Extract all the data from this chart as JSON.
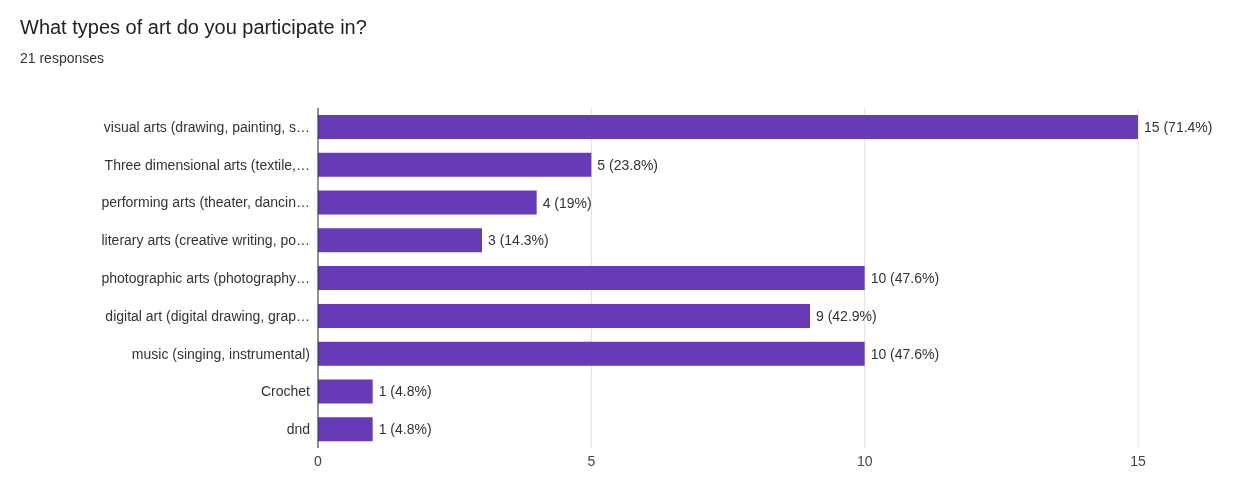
{
  "chart_data": {
    "type": "bar",
    "orientation": "horizontal",
    "title": "What types of art do you participate in?",
    "subtitle": "21 responses",
    "categories": [
      "visual arts (drawing, painting, s…",
      "Three dimensional arts (textile,…",
      "performing arts (theater, dancin…",
      "literary arts (creative writing, po…",
      "photographic arts (photography…",
      "digital art (digital drawing, grap…",
      "music (singing, instrumental)",
      "Crochet",
      "dnd"
    ],
    "values": [
      15,
      5,
      4,
      3,
      10,
      9,
      10,
      1,
      1
    ],
    "value_labels": [
      "15 (71.4%)",
      "5 (23.8%)",
      "4 (19%)",
      "3 (14.3%)",
      "10 (47.6%)",
      "9 (42.9%)",
      "10 (47.6%)",
      "1 (4.8%)",
      "1 (4.8%)"
    ],
    "color": "#673ab7",
    "xlim": [
      0,
      15
    ],
    "xticks": [
      0,
      5,
      10,
      15
    ],
    "grid": "x"
  }
}
